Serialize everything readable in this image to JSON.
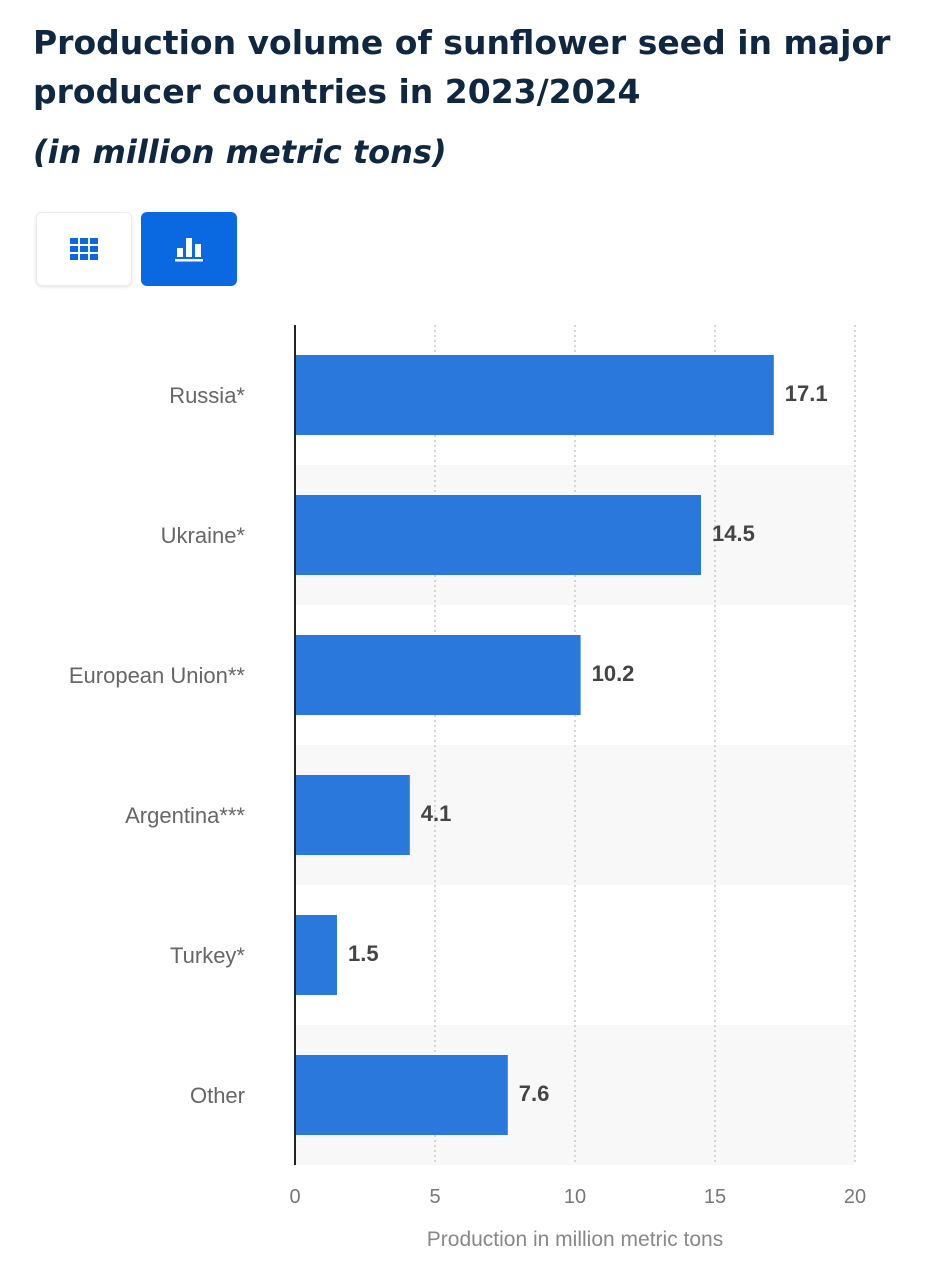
{
  "header": {
    "title": "Production volume of sunflower seed in major producer countries in 2023/2024",
    "subtitle": "(in million metric tons)"
  },
  "toolbar": {
    "table_icon": "table-grid-icon",
    "chart_icon": "bar-chart-icon",
    "active_view": "chart"
  },
  "colors": {
    "bar": "#2a78dc",
    "active_button": "#0a68e0",
    "title": "#0f2741",
    "band": "#f8f8f8"
  },
  "chart_data": {
    "type": "bar",
    "orientation": "horizontal",
    "categories": [
      "Russia*",
      "Ukraine*",
      "European Union**",
      "Argentina***",
      "Turkey*",
      "Other"
    ],
    "values": [
      17.1,
      14.5,
      10.2,
      4.1,
      1.5,
      7.6
    ],
    "value_labels": [
      "17.1",
      "14.5",
      "10.2",
      "4.1",
      "1.5",
      "7.6"
    ],
    "xlabel": "Production in million metric tons",
    "ylabel": "",
    "xlim": [
      0,
      20
    ],
    "xticks": [
      0,
      5,
      10,
      15,
      20
    ],
    "xtick_labels": [
      "0",
      "5",
      "10",
      "15",
      "20"
    ],
    "grid": "vertical dotted",
    "legend": "none"
  }
}
